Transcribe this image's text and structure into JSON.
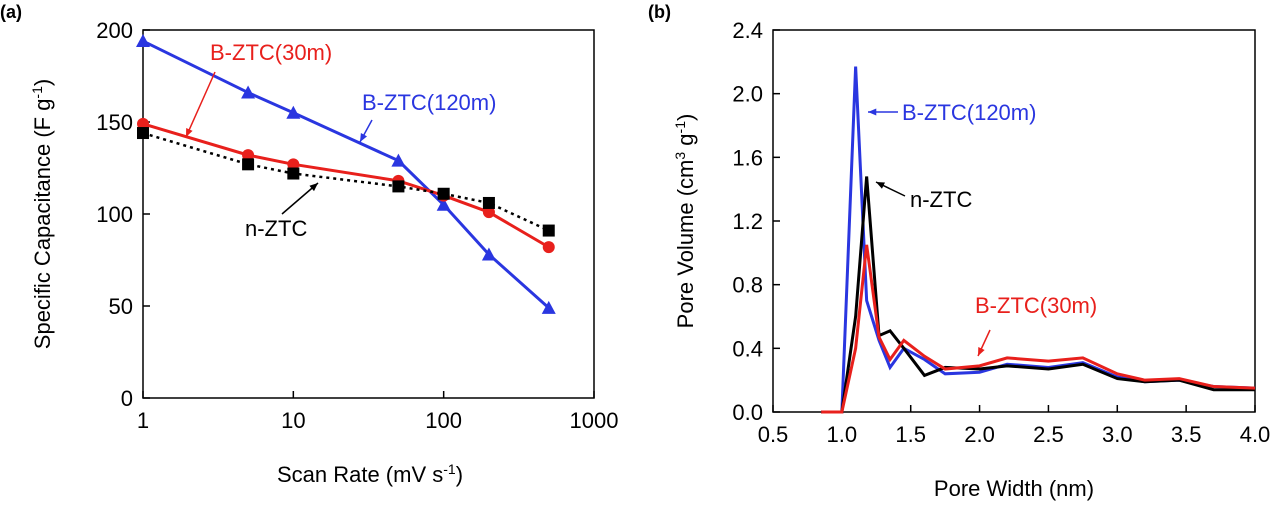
{
  "chart_data": [
    {
      "type": "line",
      "panel": "(a)",
      "xlabel": [
        "Scan Rate (mV s",
        "-1",
        ")"
      ],
      "ylabel": [
        "Specific Capacitance (F g",
        "-1",
        ")"
      ],
      "xscale": "log",
      "xlim": [
        1,
        1000
      ],
      "xticks": [
        1,
        10,
        100,
        1000
      ],
      "ylim": [
        0,
        200
      ],
      "yticks": [
        0,
        50,
        100,
        150,
        200
      ],
      "x": [
        1,
        5,
        10,
        50,
        100,
        200,
        500
      ],
      "series": [
        {
          "name": "B-ZTC(120m)",
          "color": "#2a36e0",
          "marker": "triangle",
          "linestyle": "solid",
          "values": [
            194,
            166,
            155,
            129,
            105,
            78,
            49
          ]
        },
        {
          "name": "B-ZTC(30m)",
          "color": "#e8201c",
          "marker": "circle",
          "linestyle": "solid",
          "values": [
            149,
            132,
            127,
            118,
            110,
            101,
            82
          ]
        },
        {
          "name": "n-ZTC",
          "color": "#000000",
          "marker": "square",
          "linestyle": "dotted",
          "values": [
            144,
            127,
            122,
            115,
            111,
            106,
            91
          ]
        }
      ]
    },
    {
      "type": "line",
      "panel": "(b)",
      "xlabel": [
        "Pore Width (nm)"
      ],
      "ylabel": [
        "Pore Volume (cm",
        "3",
        " g",
        "-1",
        ")"
      ],
      "xscale": "linear",
      "xlim": [
        0.5,
        4.0
      ],
      "xticks": [
        0.5,
        {
          "value": 1,
          "label": "1.0"
        },
        1.5,
        {
          "value": 2,
          "label": "2.0"
        },
        2.5,
        {
          "value": 3,
          "label": "3.0"
        },
        3.5,
        {
          "value": 4,
          "label": "4.0"
        }
      ],
      "ylim": [
        0,
        2.4
      ],
      "yticks": [
        {
          "value": 0,
          "label": "0.0"
        },
        0.4,
        0.8,
        1.2,
        1.6,
        {
          "value": 2,
          "label": "2.0"
        },
        2.4
      ],
      "x": [
        0.85,
        1.0,
        1.1,
        1.18,
        1.27,
        1.35,
        1.45,
        1.6,
        1.75,
        2.0,
        2.2,
        2.5,
        2.75,
        3.0,
        3.2,
        3.45,
        3.7,
        4.0
      ],
      "series": [
        {
          "name": "B-ZTC(120m)",
          "color": "#2a36e0",
          "marker": "none",
          "linestyle": "solid",
          "values": [
            0,
            0,
            2.17,
            0.7,
            0.45,
            0.28,
            0.4,
            0.33,
            0.24,
            0.25,
            0.3,
            0.28,
            0.31,
            0.22,
            0.19,
            0.2,
            0.16,
            0.15
          ]
        },
        {
          "name": "n-ZTC",
          "color": "#000000",
          "marker": "none",
          "linestyle": "solid",
          "values": [
            0,
            0,
            0.6,
            1.48,
            0.48,
            0.51,
            0.4,
            0.23,
            0.28,
            0.27,
            0.29,
            0.27,
            0.3,
            0.21,
            0.19,
            0.2,
            0.14,
            0.14
          ]
        },
        {
          "name": "B-ZTC(30m)",
          "color": "#e8201c",
          "marker": "none",
          "linestyle": "solid",
          "values": [
            0,
            0,
            0.4,
            1.05,
            0.47,
            0.33,
            0.45,
            0.35,
            0.27,
            0.29,
            0.34,
            0.32,
            0.34,
            0.24,
            0.2,
            0.21,
            0.16,
            0.15
          ]
        }
      ]
    }
  ]
}
